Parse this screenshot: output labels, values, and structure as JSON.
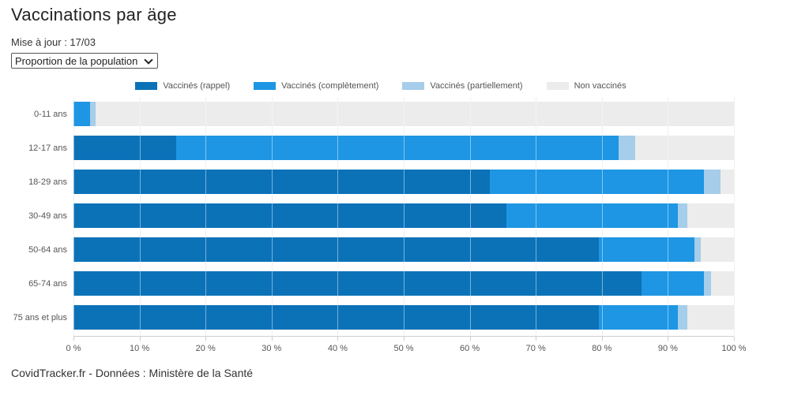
{
  "page": {
    "title": "Vaccinations par äge",
    "updated_label": "Mise à jour : 17/03",
    "footer": "CovidTracker.fr - Données : Ministère de la Santé"
  },
  "controls": {
    "metric_select": {
      "selected": "Proportion de la population",
      "options": [
        "Proportion de la population"
      ]
    }
  },
  "chart_data": {
    "type": "bar",
    "orientation": "horizontal",
    "stacked": true,
    "unit": "%",
    "xlim": [
      0,
      100
    ],
    "grid": true,
    "legend_position": "top",
    "categories": [
      "0-11 ans",
      "12-17 ans",
      "18-29 ans",
      "30-49 ans",
      "50-64 ans",
      "65-74 ans",
      "75 ans et plus"
    ],
    "series": [
      {
        "name": "Vaccinés (rappel)",
        "color": "#0b72b8",
        "values": [
          0,
          15.5,
          63,
          65.5,
          79.5,
          86,
          79.5
        ]
      },
      {
        "name": "Vaccinés (complètement)",
        "color": "#1e96e3",
        "values": [
          2.5,
          67,
          32.5,
          26,
          14.5,
          9.5,
          12
        ]
      },
      {
        "name": "Vaccinés (partiellement)",
        "color": "#a6cde9",
        "values": [
          0.8,
          2.5,
          2.5,
          1.5,
          1,
          1,
          1.5
        ]
      },
      {
        "name": "Non vaccinés",
        "color": "#ececec",
        "values": [
          96.7,
          15,
          2,
          7,
          5,
          3.5,
          7
        ]
      }
    ],
    "x_ticks": [
      {
        "label": "0 %",
        "value": 0
      },
      {
        "label": "10 %",
        "value": 10
      },
      {
        "label": "20 %",
        "value": 20
      },
      {
        "label": "30 %",
        "value": 30
      },
      {
        "label": "40 %",
        "value": 40
      },
      {
        "label": "50 %",
        "value": 50
      },
      {
        "label": "60 %",
        "value": 60
      },
      {
        "label": "70 %",
        "value": 70
      },
      {
        "label": "80 %",
        "value": 80
      },
      {
        "label": "90 %",
        "value": 90
      },
      {
        "label": "100 %",
        "value": 100
      }
    ]
  }
}
